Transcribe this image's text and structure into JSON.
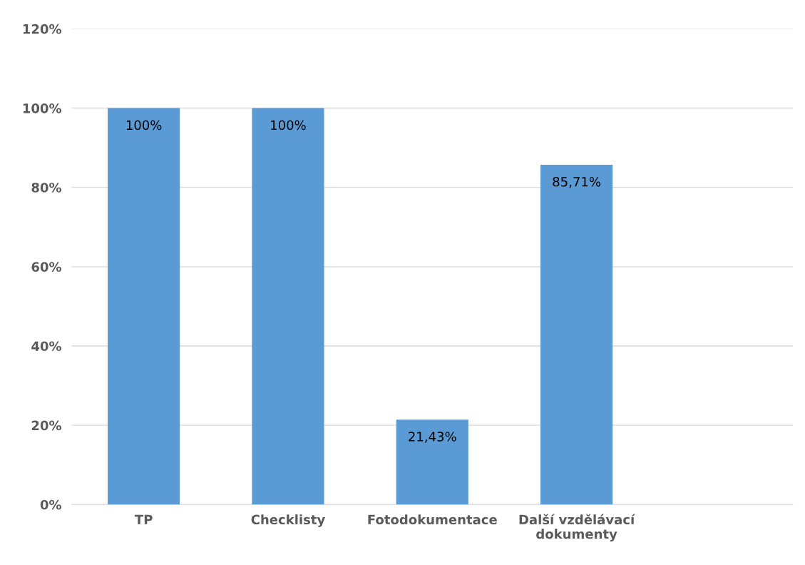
{
  "chart_data": {
    "type": "bar",
    "categories": [
      "TP",
      "Checklisty",
      "Fotodokumentace",
      "Další vzdělávací\ndokumenty",
      null
    ],
    "values": [
      100,
      100,
      21.43,
      85.71,
      null
    ],
    "color": "#5b9bd5",
    "value_labels": [
      "100%",
      "100%",
      "21,43%",
      "85,71%",
      null
    ],
    "ylim": [
      0,
      120
    ],
    "yticks": [
      {
        "value": 0,
        "label": "0%"
      },
      {
        "value": 20,
        "label": "20%"
      },
      {
        "value": 40,
        "label": "40%"
      },
      {
        "value": 60,
        "label": "60%"
      },
      {
        "value": 80,
        "label": "80%"
      },
      {
        "value": 100,
        "label": "100%"
      },
      {
        "value": 120,
        "label": "120%"
      }
    ],
    "grid": "y",
    "legend": false
  }
}
